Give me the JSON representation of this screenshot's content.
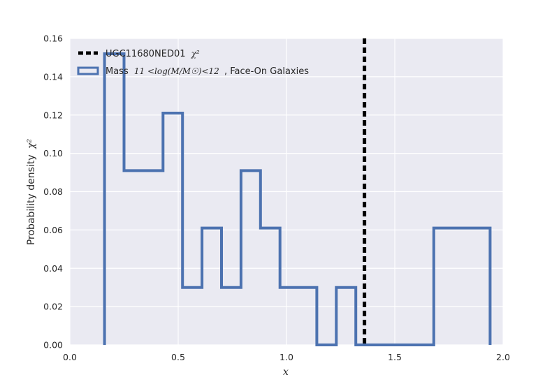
{
  "chart_data": {
    "type": "histogram-step",
    "title": "",
    "xlabel": "x",
    "ylabel": "Probability density",
    "ylabel_math": "χ²",
    "xlim": [
      0.0,
      2.0
    ],
    "ylim": [
      0.0,
      0.16
    ],
    "x_ticks": [
      "0.0",
      "0.5",
      "1.0",
      "1.5",
      "2.0"
    ],
    "x_tick_values": [
      0.0,
      0.5,
      1.0,
      1.5,
      2.0
    ],
    "y_ticks": [
      "0.00",
      "0.02",
      "0.04",
      "0.06",
      "0.08",
      "0.10",
      "0.12",
      "0.14",
      "0.16"
    ],
    "y_tick_values": [
      0.0,
      0.02,
      0.04,
      0.06,
      0.08,
      0.1,
      0.12,
      0.14,
      0.16
    ],
    "grid": true,
    "legend_position": "top-left",
    "colors": {
      "background": "#EAEAF2",
      "grid": "#ffffff",
      "histogram": "#4C72B0",
      "vline": "#000000"
    },
    "vline": {
      "name": "UGC11680NED01",
      "name_math": "χ²",
      "x": 1.36,
      "style": "dashed"
    },
    "histogram": {
      "name_prefix": "Mass",
      "name_math": "11 <log(M/M☉)<12",
      "name_suffix": ", Face-On Galaxies",
      "bin_edges": [
        0.16,
        0.25,
        0.43,
        0.52,
        0.61,
        0.7,
        0.79,
        0.88,
        0.97,
        1.06,
        1.14,
        1.23,
        1.32,
        1.41,
        1.5,
        1.59,
        1.68,
        1.94
      ],
      "values": [
        0.152,
        0.091,
        0.121,
        0.03,
        0.061,
        0.03,
        0.091,
        0.061,
        0.03,
        0.03,
        0.0,
        0.03,
        0.0,
        0.0,
        0.0,
        0.0,
        0.061
      ]
    }
  }
}
